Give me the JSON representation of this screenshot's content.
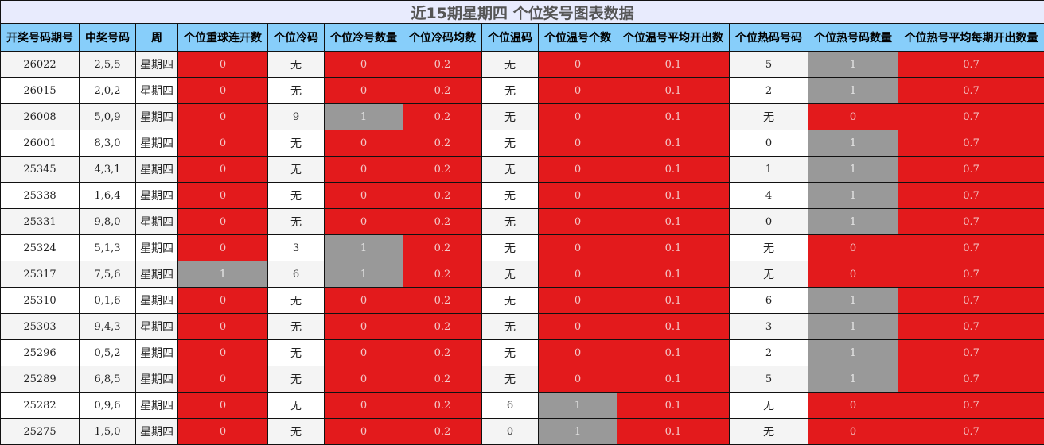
{
  "title": "近15期星期四 个位奖号图表数据",
  "colors": {
    "zero": "#e31a1c",
    "nonzero": "#999999",
    "header": "#87cefa",
    "title_bg": "#e8ebfd"
  },
  "columns": [
    "开奖号码期号",
    "中奖号码",
    "周",
    "个位重球连开数",
    "个位冷码",
    "个位冷号数量",
    "个位冷码均数",
    "个位温码",
    "个位温号个数",
    "个位温号平均开出数",
    "个位热码号码",
    "个位热号码数量",
    "个位热号平均每期开出数量"
  ],
  "rows": [
    [
      "26022",
      "2,5,5",
      "星期四",
      "0",
      "无",
      "0",
      "0.2",
      "无",
      "0",
      "0.1",
      "5",
      "1",
      "0.7"
    ],
    [
      "26015",
      "2,0,2",
      "星期四",
      "0",
      "无",
      "0",
      "0.2",
      "无",
      "0",
      "0.1",
      "2",
      "1",
      "0.7"
    ],
    [
      "26008",
      "5,0,9",
      "星期四",
      "0",
      "9",
      "1",
      "0.2",
      "无",
      "0",
      "0.1",
      "无",
      "0",
      "0.7"
    ],
    [
      "26001",
      "8,3,0",
      "星期四",
      "0",
      "无",
      "0",
      "0.2",
      "无",
      "0",
      "0.1",
      "0",
      "1",
      "0.7"
    ],
    [
      "25345",
      "4,3,1",
      "星期四",
      "0",
      "无",
      "0",
      "0.2",
      "无",
      "0",
      "0.1",
      "1",
      "1",
      "0.7"
    ],
    [
      "25338",
      "1,6,4",
      "星期四",
      "0",
      "无",
      "0",
      "0.2",
      "无",
      "0",
      "0.1",
      "4",
      "1",
      "0.7"
    ],
    [
      "25331",
      "9,8,0",
      "星期四",
      "0",
      "无",
      "0",
      "0.2",
      "无",
      "0",
      "0.1",
      "0",
      "1",
      "0.7"
    ],
    [
      "25324",
      "5,1,3",
      "星期四",
      "0",
      "3",
      "1",
      "0.2",
      "无",
      "0",
      "0.1",
      "无",
      "0",
      "0.7"
    ],
    [
      "25317",
      "7,5,6",
      "星期四",
      "1",
      "6",
      "1",
      "0.2",
      "无",
      "0",
      "0.1",
      "无",
      "0",
      "0.7"
    ],
    [
      "25310",
      "0,1,6",
      "星期四",
      "0",
      "无",
      "0",
      "0.2",
      "无",
      "0",
      "0.1",
      "6",
      "1",
      "0.7"
    ],
    [
      "25303",
      "9,4,3",
      "星期四",
      "0",
      "无",
      "0",
      "0.2",
      "无",
      "0",
      "0.1",
      "3",
      "1",
      "0.7"
    ],
    [
      "25296",
      "0,5,2",
      "星期四",
      "0",
      "无",
      "0",
      "0.2",
      "无",
      "0",
      "0.1",
      "2",
      "1",
      "0.7"
    ],
    [
      "25289",
      "6,8,5",
      "星期四",
      "0",
      "无",
      "0",
      "0.2",
      "无",
      "0",
      "0.1",
      "5",
      "1",
      "0.7"
    ],
    [
      "25282",
      "0,9,6",
      "星期四",
      "0",
      "无",
      "0",
      "0.2",
      "6",
      "1",
      "0.1",
      "无",
      "0",
      "0.7"
    ],
    [
      "25275",
      "1,5,0",
      "星期四",
      "0",
      "无",
      "0",
      "0.2",
      "0",
      "1",
      "0.1",
      "无",
      "0",
      "0.7"
    ]
  ]
}
